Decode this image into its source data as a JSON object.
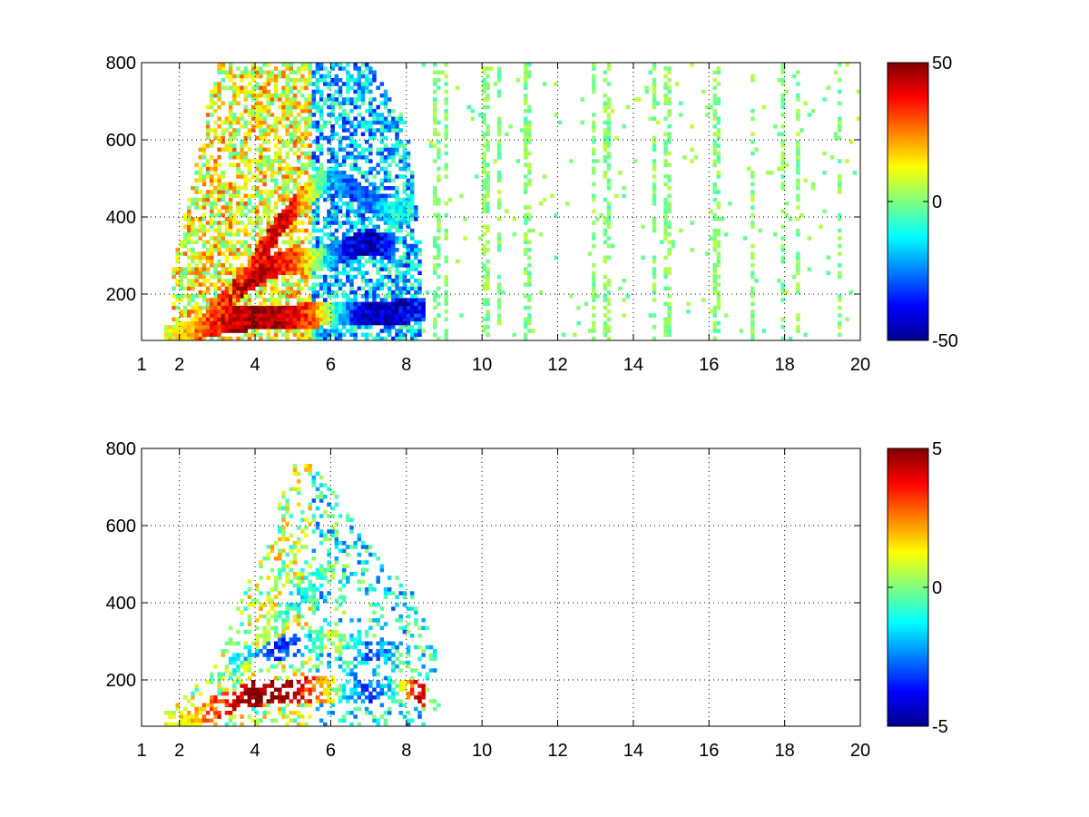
{
  "chart_data": [
    {
      "type": "heatmap",
      "title": "",
      "xlabel": "",
      "ylabel": "",
      "xlim": [
        1,
        20
      ],
      "ylim": [
        80,
        800
      ],
      "x_ticks": [
        1,
        2,
        4,
        6,
        8,
        10,
        12,
        14,
        16,
        18,
        20
      ],
      "x_tick_labels": [
        "1",
        "2",
        "4",
        "6",
        "8",
        "10",
        "12",
        "14",
        "16",
        "18",
        "20"
      ],
      "y_ticks": [
        200,
        400,
        600,
        800
      ],
      "y_tick_labels": [
        "200",
        "400",
        "600",
        "800"
      ],
      "grid": true,
      "grid_style": "dotted",
      "colormap": "jet",
      "clim": [
        -50,
        50
      ],
      "colorbar_ticks": [
        -50,
        0,
        50
      ],
      "colorbar_tick_labels": [
        "-50",
        "0",
        "50"
      ],
      "features": [
        {
          "kind": "ridge",
          "x": [
            1.8,
            2.5,
            3.2,
            4.0,
            4.8,
            5.5,
            6.0,
            6.5,
            7.0,
            7.5,
            8.0,
            8.3
          ],
          "y": [
            90,
            110,
            130,
            140,
            140,
            145,
            150,
            150,
            150,
            152,
            155,
            160
          ],
          "value": [
            10,
            25,
            40,
            48,
            45,
            30,
            0,
            -30,
            -45,
            -45,
            -40,
            -35
          ]
        },
        {
          "kind": "ridge",
          "x": [
            3.0,
            3.5,
            4.0,
            4.5,
            5.0,
            5.5,
            6.0,
            6.5,
            7.0,
            7.5
          ],
          "y": [
            160,
            210,
            250,
            275,
            285,
            290,
            300,
            320,
            335,
            330
          ],
          "value": [
            30,
            40,
            45,
            40,
            30,
            10,
            -20,
            -40,
            -45,
            -35
          ]
        },
        {
          "kind": "ridge",
          "x": [
            3.5,
            4.0,
            4.5,
            5.0,
            5.5,
            6.0,
            6.5,
            7.0,
            7.5,
            8.0
          ],
          "y": [
            200,
            280,
            360,
            420,
            470,
            500,
            480,
            440,
            410,
            420
          ],
          "value": [
            25,
            35,
            40,
            35,
            10,
            -20,
            -30,
            -25,
            -15,
            -10
          ]
        }
      ]
    },
    {
      "type": "heatmap",
      "title": "",
      "xlabel": "",
      "ylabel": "",
      "xlim": [
        1,
        20
      ],
      "ylim": [
        80,
        800
      ],
      "x_ticks": [
        1,
        2,
        4,
        6,
        8,
        10,
        12,
        14,
        16,
        18,
        20
      ],
      "x_tick_labels": [
        "1",
        "2",
        "4",
        "6",
        "8",
        "10",
        "12",
        "14",
        "16",
        "18",
        "20"
      ],
      "y_ticks": [
        200,
        400,
        600,
        800
      ],
      "y_tick_labels": [
        "200",
        "400",
        "600",
        "800"
      ],
      "grid": true,
      "grid_style": "dotted",
      "colormap": "jet",
      "clim": [
        -5,
        5
      ],
      "colorbar_ticks": [
        -5,
        0,
        5
      ],
      "colorbar_tick_labels": [
        "-5",
        "0",
        "5"
      ],
      "features": [
        {
          "kind": "ridge",
          "x": [
            1.8,
            2.5,
            3.0,
            3.5,
            4.0,
            4.5,
            5.0,
            5.5,
            6.0,
            6.5,
            7.0,
            7.5,
            8.0,
            8.3
          ],
          "y": [
            90,
            110,
            130,
            150,
            165,
            170,
            170,
            175,
            175,
            170,
            170,
            175,
            170,
            165
          ],
          "value": [
            1,
            2,
            3,
            4,
            5,
            5,
            4,
            3,
            1,
            -2,
            -3,
            -2,
            2,
            4
          ]
        },
        {
          "kind": "ridge",
          "x": [
            3.5,
            4.0,
            4.5,
            5.0,
            5.5,
            6.0,
            6.5,
            7.0,
            7.5
          ],
          "y": [
            240,
            270,
            280,
            290,
            300,
            300,
            290,
            280,
            270
          ],
          "value": [
            -1,
            -2,
            -3,
            -3,
            -1,
            1,
            -1,
            -3,
            -2
          ]
        },
        {
          "kind": "ridge",
          "x": [
            3.5,
            4.0,
            4.5,
            5.0,
            5.5,
            6.0
          ],
          "y": [
            200,
            280,
            340,
            400,
            450,
            480
          ],
          "value": [
            0,
            1,
            0,
            -1,
            -1,
            0
          ]
        }
      ]
    }
  ],
  "colors": {
    "background": "#ffffff",
    "axis": "#000000",
    "grid": "#000000"
  }
}
